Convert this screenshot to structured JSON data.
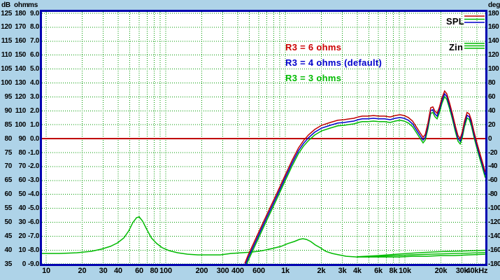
{
  "window": {
    "description": "Loudspeaker crossover simulation plot - SPL and input impedance vs frequency"
  },
  "axes": {
    "units": {
      "db": "dB",
      "ohm": "ohm",
      "ms": "ms",
      "deg": "deg"
    },
    "db_labels": [
      "125",
      "120",
      "115",
      "110",
      "105",
      "100",
      "95",
      "90",
      "85",
      "80",
      "75",
      "70",
      "65",
      "60",
      "55",
      "50",
      "45",
      "40",
      "35"
    ],
    "ohm_labels": [
      "180",
      "170",
      "160",
      "150",
      "140",
      "130",
      "120",
      "110",
      "100",
      "90",
      "80",
      "70",
      "60",
      "50",
      "40",
      "30",
      "20",
      "10",
      "0"
    ],
    "ms_labels": [
      "9.0",
      "8.0",
      "7.0",
      "6.0",
      "5.0",
      "4.0",
      "3.0",
      "2.0",
      "1.0",
      "0.0",
      "-1.0",
      "-2.0",
      "-3.0",
      "-4.0",
      "-5.0",
      "-6.0",
      "-7.0",
      "-8.0",
      "-9.0"
    ],
    "deg_labels": [
      "180",
      "160",
      "140",
      "120",
      "100",
      "80",
      "60",
      "40",
      "20",
      "0",
      "-20",
      "-40",
      "-60",
      "-80",
      "-100",
      "-120",
      "-140",
      "-160",
      "-180"
    ]
  },
  "legend": {
    "spl_label": "SPL",
    "zin_label": "Zin",
    "spl_line_colors": [
      "#C00000",
      "#00BB00",
      "#0000CC"
    ],
    "zin_line_colors": [
      "#00BB00",
      "#00BB00",
      "#00BB00"
    ]
  },
  "annotations": [
    {
      "text": "R3 = 6 ohms",
      "color": "#CC0000"
    },
    {
      "text": "R3 = 4 ohms (default)",
      "color": "#0000CC"
    },
    {
      "text": "R3 = 3 ohms",
      "color": "#00BB00"
    }
  ],
  "colors": {
    "background": "#AED3E8",
    "plot_background": "#FFFFFF",
    "plot_border": "#0000B0",
    "grid": "#009900",
    "zero_line": "#C00000"
  },
  "chart_data": {
    "type": "line",
    "title": "",
    "x_axis": {
      "scale": "log",
      "unit": "Hz",
      "min": 9.2,
      "max": 47000,
      "ticks": [
        {
          "f": 10,
          "label": "10"
        },
        {
          "f": 20,
          "label": "20"
        },
        {
          "f": 30,
          "label": "30"
        },
        {
          "f": 40,
          "label": "40"
        },
        {
          "f": 60,
          "label": "60"
        },
        {
          "f": 80,
          "label": "80"
        },
        {
          "f": 100,
          "label": "100"
        },
        {
          "f": 200,
          "label": "200"
        },
        {
          "f": 300,
          "label": "300"
        },
        {
          "f": 400,
          "label": "400"
        },
        {
          "f": 600,
          "label": "600"
        },
        {
          "f": 1000,
          "label": "1k"
        },
        {
          "f": 2000,
          "label": "2k"
        },
        {
          "f": 3000,
          "label": "3k"
        },
        {
          "f": 4000,
          "label": "4k"
        },
        {
          "f": 6000,
          "label": "6k"
        },
        {
          "f": 8000,
          "label": "8k"
        },
        {
          "f": 10000,
          "label": "10k"
        },
        {
          "f": 20000,
          "label": "20k"
        },
        {
          "f": 30000,
          "label": "30k"
        },
        {
          "f": 40000,
          "label": "40kHz"
        }
      ]
    },
    "y_axis_left": {
      "spl_db": {
        "min": 35,
        "max": 125,
        "step": 5
      },
      "impedance_ohm": {
        "min": 0,
        "max": 180,
        "step": 10
      },
      "time_ms": {
        "min": -9.0,
        "max": 9.0,
        "step": 1.0
      }
    },
    "y_axis_right": {
      "phase_deg": {
        "min": -180,
        "max": 180,
        "step": 20
      }
    },
    "zero_line_db": 80,
    "grid": "dotted green, log-decade verticals, 5 dB horizontals",
    "legend_position": "top-right inside plot",
    "spl": {
      "base_points_hz_db": [
        [
          458,
          34.2
        ],
        [
          490,
          37.3
        ],
        [
          561,
          42.8
        ],
        [
          686,
          50.9
        ],
        [
          839,
          58.9
        ],
        [
          1000,
          66.0
        ],
        [
          1140,
          71.2
        ],
        [
          1290,
          75.7
        ],
        [
          1420,
          78.3
        ],
        [
          1560,
          80.3
        ],
        [
          1760,
          82.3
        ],
        [
          2010,
          83.8
        ],
        [
          2370,
          84.8
        ],
        [
          2750,
          85.6
        ],
        [
          3100,
          85.8
        ],
        [
          3450,
          86.1
        ],
        [
          3740,
          86.3
        ],
        [
          4060,
          86.8
        ],
        [
          4400,
          87.1
        ],
        [
          4900,
          87.1
        ],
        [
          5460,
          87.3
        ],
        [
          6080,
          87.1
        ],
        [
          6770,
          87.1
        ],
        [
          7530,
          86.8
        ],
        [
          8280,
          87.3
        ],
        [
          9100,
          87.6
        ],
        [
          9870,
          87.3
        ],
        [
          10700,
          86.6
        ],
        [
          11600,
          85.3
        ],
        [
          12560,
          83.0
        ],
        [
          13450,
          81.0
        ],
        [
          14190,
          79.5
        ],
        [
          14790,
          80.5
        ],
        [
          15600,
          84.6
        ],
        [
          16440,
          90.1
        ],
        [
          17140,
          90.4
        ],
        [
          17830,
          88.9
        ],
        [
          18580,
          88.1
        ],
        [
          19360,
          90.1
        ],
        [
          20400,
          93.6
        ],
        [
          21500,
          96.1
        ],
        [
          22400,
          95.1
        ],
        [
          23700,
          91.6
        ],
        [
          25000,
          87.9
        ],
        [
          26400,
          83.6
        ],
        [
          27800,
          80.1
        ],
        [
          29000,
          79.1
        ],
        [
          30200,
          81.4
        ],
        [
          31400,
          85.1
        ],
        [
          33100,
          88.4
        ],
        [
          34500,
          87.9
        ],
        [
          36000,
          85.6
        ],
        [
          37900,
          81.4
        ],
        [
          40000,
          77.5
        ],
        [
          42200,
          74.0
        ],
        [
          44600,
          70.5
        ],
        [
          47000,
          67.0
        ]
      ],
      "series": [
        {
          "name": "SPL R3 = 6 ohms",
          "color": "#C00000",
          "db_offset": 1.0
        },
        {
          "name": "SPL R3 = 4 ohms (default)",
          "color": "#0000CC",
          "db_offset": 0.0
        },
        {
          "name": "SPL R3 = 3 ohms",
          "color": "#00BB00",
          "db_offset": -1.0
        }
      ]
    },
    "zin": {
      "name": "Zin",
      "color": "#00BB00",
      "base_points_hz_ohm": [
        [
          9.2,
          7.6
        ],
        [
          12.9,
          7.6
        ],
        [
          18,
          8.1
        ],
        [
          23.7,
          9.1
        ],
        [
          29,
          10.7
        ],
        [
          34.5,
          12.7
        ],
        [
          39.5,
          15.2
        ],
        [
          44.6,
          18.7
        ],
        [
          49,
          23.7
        ],
        [
          53,
          29.7
        ],
        [
          57,
          33.3
        ],
        [
          60,
          33.8
        ],
        [
          64,
          30.8
        ],
        [
          69.5,
          24.7
        ],
        [
          76,
          18.7
        ],
        [
          84,
          14.7
        ],
        [
          93.5,
          11.7
        ],
        [
          107,
          9.6
        ],
        [
          126,
          8.1
        ],
        [
          152,
          7.1
        ],
        [
          186,
          6.6
        ],
        [
          227,
          6.6
        ],
        [
          286,
          6.6
        ],
        [
          350,
          7.6
        ],
        [
          428,
          8.1
        ],
        [
          524,
          8.6
        ],
        [
          641,
          9.6
        ],
        [
          785,
          11.2
        ],
        [
          922,
          12.7
        ],
        [
          1050,
          14.7
        ],
        [
          1190,
          16.2
        ],
        [
          1310,
          17.7
        ],
        [
          1400,
          18.2
        ],
        [
          1500,
          17.7
        ],
        [
          1630,
          16.2
        ],
        [
          1780,
          13.7
        ],
        [
          1960,
          11.7
        ],
        [
          2180,
          9.1
        ],
        [
          2470,
          7.6
        ],
        [
          2820,
          6.6
        ],
        [
          3230,
          5.6
        ],
        [
          3950,
          5.1
        ],
        [
          5170,
          5.1
        ],
        [
          6770,
          5.1
        ],
        [
          8860,
          5.1
        ],
        [
          11600,
          5.6
        ],
        [
          15200,
          5.6
        ],
        [
          19900,
          6.1
        ],
        [
          26000,
          6.1
        ],
        [
          34000,
          6.6
        ],
        [
          47000,
          7.1
        ]
      ],
      "hf_variant_tails_hz_ohm": [
        [
          [
            4000,
            5.3
          ],
          [
            6000,
            6.1
          ],
          [
            8000,
            6.9
          ],
          [
            10000,
            7.5
          ],
          [
            14000,
            8.3
          ],
          [
            20000,
            8.9
          ],
          [
            30000,
            9.3
          ],
          [
            47000,
            9.9
          ]
        ],
        [
          [
            4000,
            5.2
          ],
          [
            6000,
            5.6
          ],
          [
            8000,
            6.0
          ],
          [
            10000,
            6.4
          ],
          [
            14000,
            6.9
          ],
          [
            20000,
            7.3
          ],
          [
            30000,
            7.7
          ],
          [
            47000,
            8.3
          ]
        ]
      ]
    }
  }
}
